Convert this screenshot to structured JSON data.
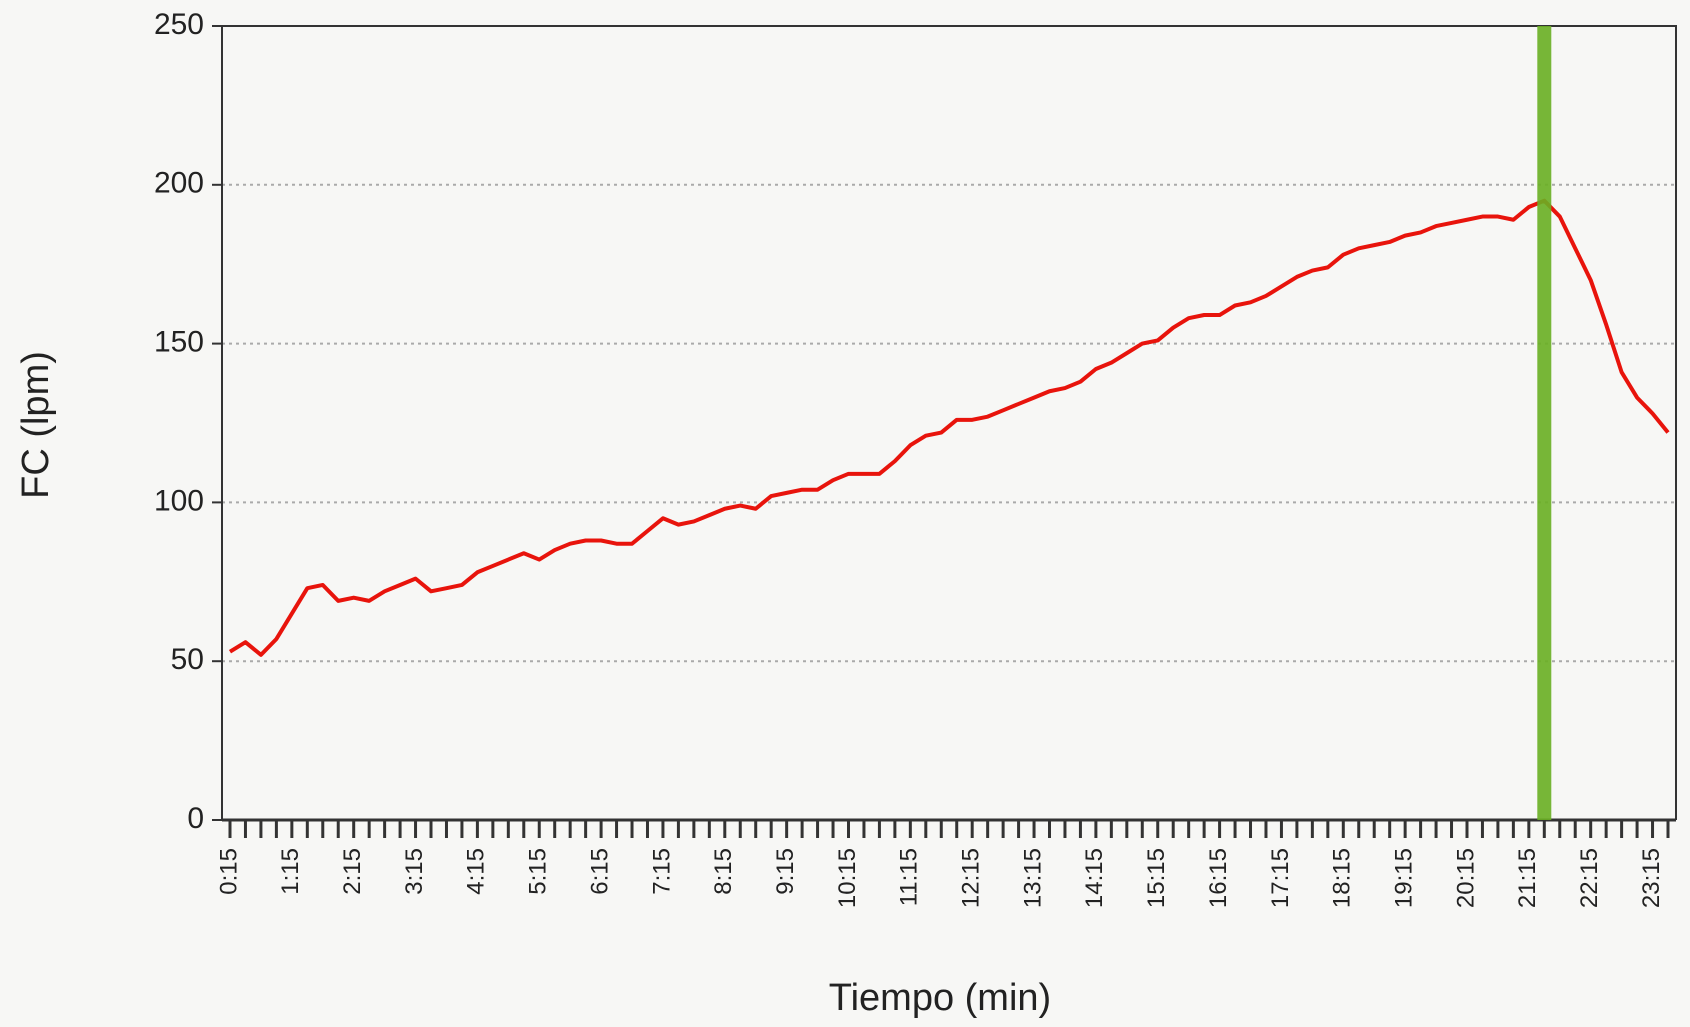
{
  "chart_data": {
    "type": "line",
    "xlabel": "Tiempo (min)",
    "ylabel": "FC (lpm)",
    "categories": [
      "0:15",
      null,
      null,
      null,
      "1:15",
      null,
      null,
      null,
      "2:15",
      null,
      null,
      null,
      "3:15",
      null,
      null,
      null,
      "4:15",
      null,
      null,
      null,
      "5:15",
      null,
      null,
      null,
      "6:15",
      null,
      null,
      null,
      "7:15",
      null,
      null,
      null,
      "8:15",
      null,
      null,
      null,
      "9:15",
      null,
      null,
      null,
      "10:15",
      null,
      null,
      null,
      "11:15",
      null,
      null,
      null,
      "12:15",
      null,
      null,
      null,
      "13:15",
      null,
      null,
      null,
      "14:15",
      null,
      null,
      null,
      "15:15",
      null,
      null,
      null,
      "16:15",
      null,
      null,
      null,
      "17:15",
      null,
      null,
      null,
      "18:15",
      null,
      null,
      null,
      "19:15",
      null,
      null,
      null,
      "20:15",
      null,
      null,
      null,
      "21:15",
      null,
      null,
      null,
      "22:15",
      null,
      null,
      null,
      "23:15",
      null
    ],
    "values": [
      53,
      56,
      52,
      57,
      65,
      73,
      74,
      69,
      70,
      69,
      72,
      74,
      76,
      72,
      73,
      74,
      78,
      80,
      82,
      84,
      82,
      85,
      87,
      88,
      88,
      87,
      87,
      91,
      95,
      93,
      94,
      96,
      98,
      99,
      98,
      102,
      103,
      104,
      104,
      107,
      109,
      109,
      109,
      113,
      118,
      121,
      122,
      126,
      126,
      127,
      129,
      131,
      133,
      135,
      136,
      138,
      142,
      144,
      147,
      150,
      151,
      155,
      158,
      159,
      159,
      162,
      163,
      165,
      168,
      171,
      173,
      174,
      178,
      180,
      181,
      182,
      184,
      185,
      187,
      188,
      189,
      190,
      190,
      189,
      193,
      195,
      190,
      180,
      170,
      156,
      141,
      133,
      128,
      122
    ],
    "color": "#e8140c",
    "marker": {
      "x": 85,
      "color": "#6ab023"
    },
    "ylim": [
      0,
      250
    ],
    "yticks": [
      0,
      50,
      100,
      150,
      200,
      250
    ],
    "grid": true
  }
}
